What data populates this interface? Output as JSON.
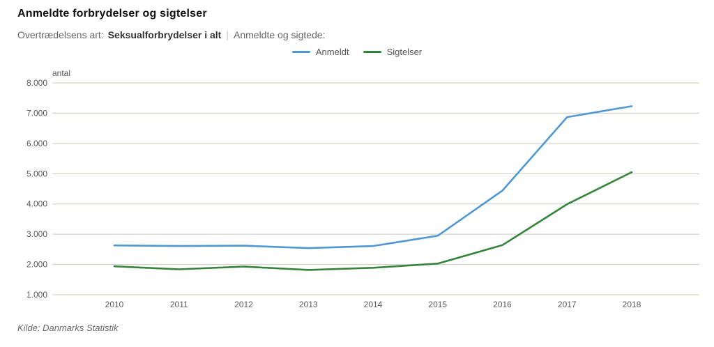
{
  "header": {
    "title": "Anmeldte forbrydelser og sigtelser",
    "filter_label": "Overtrædelsens art:",
    "filter_value": "Seksualforbrydelser i alt",
    "separator": "|",
    "series_label": "Anmeldte og sigtede:"
  },
  "legend": [
    {
      "label": "Anmeldt",
      "color": "#4f97d3"
    },
    {
      "label": "Sigtelser",
      "color": "#35843c"
    }
  ],
  "chart_data": {
    "type": "line",
    "title": "Anmeldte forbrydelser og sigtelser",
    "unit_label": "antal",
    "categories": [
      "2010",
      "2011",
      "2012",
      "2013",
      "2014",
      "2015",
      "2016",
      "2017",
      "2018"
    ],
    "series": [
      {
        "name": "Anmeldt",
        "color": "#4f97d3",
        "values": [
          2630,
          2610,
          2620,
          2540,
          2610,
          2950,
          4440,
          6870,
          7230
        ]
      },
      {
        "name": "Sigtelser",
        "color": "#35843c",
        "values": [
          1940,
          1840,
          1930,
          1820,
          1890,
          2030,
          2640,
          3990,
          5050
        ]
      }
    ],
    "ylim": [
      1000,
      8000
    ],
    "yticks": [
      8000,
      7000,
      6000,
      5000,
      4000,
      3000,
      2000,
      1000
    ],
    "ytick_labels": [
      "8.000",
      "7.000",
      "6.000",
      "5.000",
      "4.000",
      "3.000",
      "2.000",
      "1.000"
    ],
    "grid": true,
    "legend_position": "top-center",
    "grid_color": "#d5d5cb"
  },
  "footer": {
    "source": "Kilde: Danmarks Statistik"
  }
}
